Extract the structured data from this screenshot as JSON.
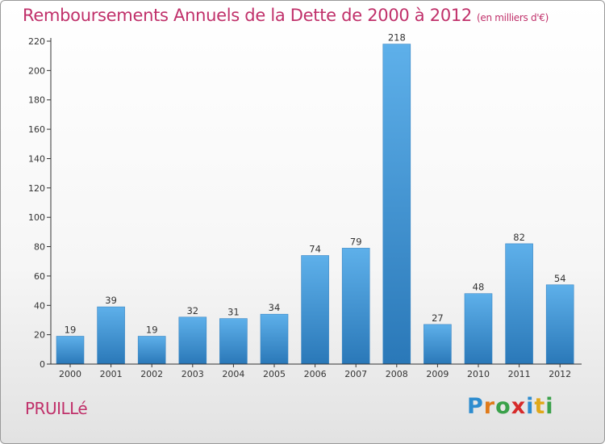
{
  "header": {
    "title": "Remboursements Annuels de la Dette de 2000 à 2012",
    "unit": "(en milliers d'€)"
  },
  "footer": {
    "commune": "PRUILLé",
    "brand_letters": [
      "P",
      "r",
      "o",
      "x",
      "i",
      "t",
      "i"
    ],
    "brand_colors": [
      "#2d8ccf",
      "#e07a1a",
      "#3aa14a",
      "#d62a2a",
      "#2d8ccf",
      "#e0a81a",
      "#3aa14a"
    ]
  },
  "colors": {
    "title": "#c0306a",
    "bar_top": "#5eb0ea",
    "bar_bottom": "#2a78b8",
    "axis": "#333333"
  },
  "chart_data": {
    "type": "bar",
    "categories": [
      "2000",
      "2001",
      "2002",
      "2003",
      "2004",
      "2005",
      "2006",
      "2007",
      "2008",
      "2009",
      "2010",
      "2011",
      "2012"
    ],
    "values": [
      19,
      39,
      19,
      32,
      31,
      34,
      74,
      79,
      218,
      27,
      48,
      82,
      54
    ],
    "ylim": [
      0,
      220
    ],
    "yticks": [
      0,
      20,
      40,
      60,
      80,
      100,
      120,
      140,
      160,
      180,
      200,
      220
    ],
    "grid": false,
    "data_labels": true
  }
}
